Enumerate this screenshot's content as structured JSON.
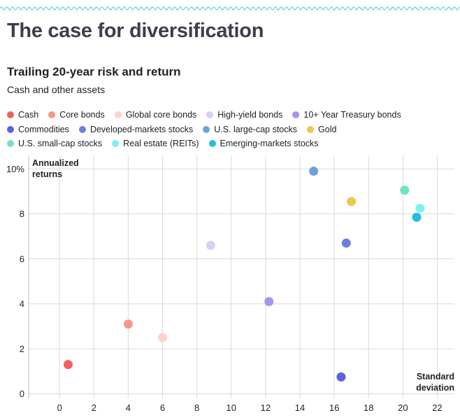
{
  "page": {
    "title": "The case for diversification"
  },
  "chart_data": {
    "type": "scatter",
    "title": "Trailing 20-year risk and return",
    "subtitle": "Cash and other assets",
    "ylabel_lines": [
      "Annualized",
      "returns"
    ],
    "xlabel_lines": [
      "Standard",
      "deviation"
    ],
    "xlim": [
      -1.8,
      23
    ],
    "ylim": [
      -0.2,
      10.6
    ],
    "x_ticks": [
      0,
      2,
      4,
      6,
      8,
      10,
      12,
      14,
      16,
      18,
      20,
      22
    ],
    "x_tick_labels": [
      "0",
      "2",
      "4",
      "6",
      "8",
      "10",
      "12",
      "14",
      "16",
      "18",
      "20",
      "22"
    ],
    "y_ticks": [
      0,
      2,
      4,
      6,
      8,
      10
    ],
    "y_tick_labels": [
      "0",
      "2",
      "4",
      "6",
      "8",
      "10%"
    ],
    "grid": true,
    "legend_position": "top",
    "series": [
      {
        "name": "Cash",
        "color": "#f26060",
        "x": 0.5,
        "y": 1.3
      },
      {
        "name": "Core bonds",
        "color": "#f7968a",
        "x": 4.0,
        "y": 3.1
      },
      {
        "name": "Global core bonds",
        "color": "#fcd3ca",
        "x": 6.0,
        "y": 2.5
      },
      {
        "name": "High-yield bonds",
        "color": "#d9cff5",
        "x": 8.8,
        "y": 6.6
      },
      {
        "name": "10+ Year Treasury bonds",
        "color": "#a594ee",
        "x": 12.2,
        "y": 4.1
      },
      {
        "name": "Commodities",
        "color": "#5d60e6",
        "x": 16.4,
        "y": 0.75
      },
      {
        "name": "Developed-markets stocks",
        "color": "#6a7fe0",
        "x": 16.7,
        "y": 6.7
      },
      {
        "name": "U.S. large-cap stocks",
        "color": "#739fd9",
        "x": 14.8,
        "y": 9.9
      },
      {
        "name": "Gold",
        "color": "#f0c44f",
        "x": 17.0,
        "y": 8.55
      },
      {
        "name": "U.S. small-cap stocks",
        "color": "#6fe3c4",
        "x": 20.1,
        "y": 9.05
      },
      {
        "name": "Real estate (REITs)",
        "color": "#7ff0ee",
        "x": 21.0,
        "y": 8.25
      },
      {
        "name": "Emerging-markets stocks",
        "color": "#22c0dc",
        "x": 20.8,
        "y": 7.85
      }
    ],
    "legend_rows": [
      [
        0,
        1,
        2,
        3,
        4
      ],
      [
        5,
        6,
        7,
        8
      ],
      [
        9,
        10,
        11
      ]
    ]
  }
}
